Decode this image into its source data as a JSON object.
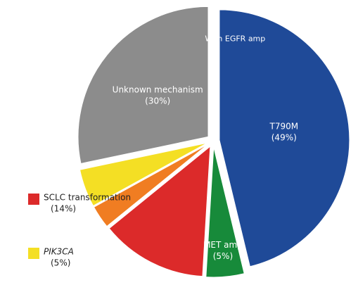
{
  "chart_data": {
    "type": "pie",
    "categories": [
      "T790M",
      "MET amp",
      "SCLC transformation",
      null,
      "PIK3CA",
      "Unknown mechanism"
    ],
    "values": [
      49,
      5,
      14,
      3,
      5,
      30
    ],
    "value_labels": [
      "(49%)",
      "(5%)",
      "(14%)",
      null,
      "(5%)",
      "(30%)"
    ],
    "colors": [
      "#1f4a98",
      "#178a3a",
      "#dc2a2a",
      "#f07d22",
      "#f4df24",
      "#8c8c8c"
    ],
    "annotations": [
      {
        "text": "With EGFR amp",
        "slice": 0
      }
    ]
  }
}
